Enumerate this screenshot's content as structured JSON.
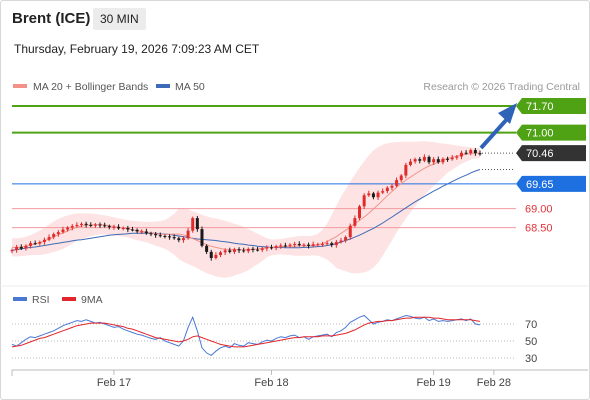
{
  "header": {
    "instrument": "Brent (ICE)",
    "timeframe": "30 MIN",
    "datetime": "Thursday, February 19, 2026 7:09:23 AM CET"
  },
  "legend": {
    "items": [
      {
        "label": "MA 20 + Bollinger Bands",
        "color": "#f4928a"
      },
      {
        "label": "MA 50",
        "color": "#3d6bb5"
      }
    ],
    "credit": "Research © 2026 Trading Central"
  },
  "chart_data": [
    {
      "type": "candlestick",
      "ylim": [
        67.55,
        71.9
      ],
      "levels": [
        {
          "value": 71.7,
          "label": "71.70",
          "color": "#4ea213",
          "kind": "tag"
        },
        {
          "value": 71.0,
          "label": "71.00",
          "color": "#4ea213",
          "kind": "tag"
        },
        {
          "value": 70.46,
          "label": "70.46",
          "color": "#333333",
          "kind": "price"
        },
        {
          "value": 69.65,
          "label": "69.65",
          "color": "#1e6fe0",
          "kind": "tag"
        },
        {
          "value": 69.0,
          "label": "69.00",
          "color": "#e0333a",
          "kind": "text"
        },
        {
          "value": 68.5,
          "label": "68.50",
          "color": "#e0333a",
          "kind": "text"
        }
      ],
      "close": [
        67.91,
        67.99,
        67.95,
        68.02,
        68.09,
        68.08,
        68.12,
        68.18,
        68.25,
        68.33,
        68.38,
        68.45,
        68.5,
        68.54,
        68.57,
        68.6,
        68.57,
        68.55,
        68.58,
        68.56,
        68.54,
        68.51,
        68.52,
        68.48,
        68.49,
        68.45,
        68.44,
        68.4,
        68.4,
        68.35,
        68.33,
        68.3,
        68.28,
        68.27,
        68.25,
        68.22,
        68.17,
        68.22,
        68.42,
        68.75,
        68.46,
        68.02,
        67.86,
        67.7,
        67.78,
        67.85,
        67.9,
        67.86,
        67.93,
        67.9,
        67.88,
        67.94,
        67.92,
        67.91,
        67.95,
        67.98,
        67.96,
        68.01,
        68.03,
        68.02,
        68.05,
        68.07,
        68.04,
        68.05,
        68.02,
        68.06,
        68.06,
        68.07,
        68.09,
        68.04,
        68.12,
        68.16,
        68.25,
        68.55,
        68.75,
        69.06,
        69.35,
        69.4,
        69.3,
        69.42,
        69.46,
        69.55,
        69.6,
        69.75,
        69.87,
        70.15,
        70.24,
        70.3,
        70.26,
        70.36,
        70.22,
        70.3,
        70.22,
        70.31,
        70.3,
        70.34,
        70.37,
        70.47,
        70.46,
        70.54,
        70.46,
        70.43
      ],
      "ma20": [
        67.98,
        67.98,
        67.99,
        68.01,
        68.04,
        68.07,
        68.1,
        68.15,
        68.2,
        68.26,
        68.31,
        68.36,
        68.41,
        68.46,
        68.51,
        68.54,
        68.56,
        68.57,
        68.58,
        68.58,
        68.57,
        68.55,
        68.53,
        68.51,
        68.49,
        68.47,
        68.44,
        68.42,
        68.4,
        68.38,
        68.36,
        68.34,
        68.33,
        68.32,
        68.32,
        68.33,
        68.33,
        68.31,
        68.26,
        68.21,
        68.16,
        68.1,
        68.05,
        68.01,
        67.98,
        67.95,
        67.93,
        67.92,
        67.92,
        67.92,
        67.92,
        67.92,
        67.93,
        67.94,
        67.95,
        67.97,
        67.98,
        67.99,
        68.0,
        68.0,
        68.01,
        68.01,
        68.02,
        68.02,
        68.02,
        68.03,
        68.05,
        68.08,
        68.13,
        68.2,
        68.26,
        68.35,
        68.43,
        68.51,
        68.6,
        68.69,
        68.78,
        68.88,
        68.99,
        69.1,
        69.22,
        69.34,
        69.45,
        69.56,
        69.66,
        69.75,
        69.83,
        69.91,
        69.99,
        70.06,
        70.12,
        70.17,
        70.22,
        70.27,
        70.32,
        70.35,
        70.38,
        70.41,
        70.43,
        70.45,
        70.46,
        70.46
      ],
      "ma50": [
        67.9,
        67.92,
        67.94,
        67.96,
        67.98,
        67.99,
        68.01,
        68.03,
        68.05,
        68.07,
        68.09,
        68.11,
        68.13,
        68.15,
        68.17,
        68.18,
        68.2,
        68.22,
        68.24,
        68.26,
        68.28,
        68.3,
        68.31,
        68.32,
        68.33,
        68.34,
        68.35,
        68.35,
        68.35,
        68.35,
        68.35,
        68.35,
        68.34,
        68.33,
        68.32,
        68.3,
        68.28,
        68.26,
        68.24,
        68.22,
        68.2,
        68.19,
        68.18,
        68.17,
        68.16,
        68.14,
        68.13,
        68.11,
        68.09,
        68.07,
        68.06,
        68.04,
        68.03,
        68.01,
        68.0,
        67.99,
        67.98,
        67.98,
        67.98,
        67.97,
        67.97,
        67.97,
        67.97,
        67.98,
        67.98,
        67.99,
        68.0,
        68.01,
        68.03,
        68.05,
        68.08,
        68.12,
        68.16,
        68.2,
        68.25,
        68.3,
        68.36,
        68.42,
        68.48,
        68.55,
        68.62,
        68.7,
        68.78,
        68.86,
        68.94,
        69.02,
        69.1,
        69.18,
        69.25,
        69.32,
        69.39,
        69.46,
        69.52,
        69.59,
        69.65,
        69.71,
        69.77,
        69.83,
        69.88,
        69.94,
        69.99,
        70.03
      ],
      "bb_upper": [
        68.22,
        68.22,
        68.23,
        68.26,
        68.3,
        68.36,
        68.42,
        68.5,
        68.58,
        68.66,
        68.73,
        68.78,
        68.82,
        68.85,
        68.87,
        68.88,
        68.88,
        68.87,
        68.86,
        68.84,
        68.82,
        68.8,
        68.77,
        68.74,
        68.72,
        68.69,
        68.68,
        68.67,
        68.66,
        68.65,
        68.65,
        68.66,
        68.67,
        68.7,
        68.77,
        68.87,
        68.99,
        69.02,
        68.98,
        68.93,
        68.89,
        68.84,
        68.8,
        68.76,
        68.74,
        68.71,
        68.68,
        68.64,
        68.6,
        68.56,
        68.52,
        68.46,
        68.4,
        68.34,
        68.28,
        68.22,
        68.19,
        68.19,
        68.2,
        68.22,
        68.24,
        68.26,
        68.28,
        68.28,
        68.28,
        68.29,
        68.34,
        68.44,
        68.6,
        68.84,
        69.08,
        69.31,
        69.51,
        69.71,
        69.9,
        70.08,
        70.24,
        70.4,
        70.53,
        70.62,
        70.68,
        70.72,
        70.74,
        70.75,
        70.76,
        70.76,
        70.76,
        70.76,
        70.77,
        70.77,
        70.76,
        70.75,
        70.73,
        70.71,
        70.7,
        70.68,
        70.66,
        70.64,
        70.63,
        70.61,
        70.6,
        70.59
      ],
      "bb_lower": [
        67.74,
        67.74,
        67.75,
        67.76,
        67.78,
        67.78,
        67.78,
        67.8,
        67.82,
        67.86,
        67.89,
        67.94,
        68.0,
        68.07,
        68.15,
        68.2,
        68.24,
        68.27,
        68.3,
        68.32,
        68.32,
        68.3,
        68.29,
        68.28,
        68.26,
        68.25,
        68.2,
        68.17,
        68.14,
        68.11,
        68.07,
        68.02,
        67.99,
        67.94,
        67.87,
        67.79,
        67.67,
        67.6,
        67.54,
        67.49,
        67.43,
        67.36,
        67.3,
        67.26,
        67.22,
        67.19,
        67.18,
        67.2,
        67.24,
        67.28,
        67.32,
        67.38,
        67.46,
        67.54,
        67.62,
        67.72,
        67.77,
        67.79,
        67.8,
        67.78,
        67.78,
        67.76,
        67.76,
        67.76,
        67.76,
        67.77,
        67.76,
        67.72,
        67.66,
        67.56,
        67.44,
        67.39,
        67.35,
        67.31,
        67.3,
        67.3,
        67.32,
        67.36,
        67.45,
        67.58,
        67.76,
        67.96,
        68.16,
        68.37,
        68.56,
        68.74,
        68.9,
        69.06,
        69.21,
        69.35,
        69.48,
        69.59,
        69.71,
        69.83,
        69.94,
        70.02,
        70.1,
        70.18,
        70.23,
        70.29,
        70.32,
        70.33
      ]
    },
    {
      "type": "line",
      "ylabels": [
        "70",
        "50",
        "30"
      ],
      "ylevels": [
        70,
        50,
        30
      ],
      "ylim": [
        18,
        84
      ],
      "series": [
        {
          "name": "RSI",
          "color": "#4a78d4",
          "values": [
            46,
            44,
            48,
            52,
            55,
            54,
            56,
            58,
            60,
            62,
            65,
            68,
            70,
            72,
            74,
            73,
            75,
            73,
            71,
            72,
            70,
            68,
            66,
            67,
            64,
            62,
            60,
            58,
            57,
            55,
            53,
            52,
            54,
            50,
            48,
            46,
            44,
            50,
            66,
            78,
            62,
            42,
            36,
            33,
            38,
            42,
            44,
            42,
            47,
            45,
            44,
            48,
            47,
            46,
            49,
            51,
            50,
            53,
            55,
            54,
            56,
            57,
            54,
            55,
            52,
            55,
            56,
            57,
            58,
            55,
            60,
            62,
            66,
            72,
            75,
            78,
            80,
            75,
            70,
            72,
            73,
            75,
            74,
            76,
            78,
            80,
            79,
            77,
            76,
            78,
            74,
            76,
            73,
            74,
            73,
            74,
            75,
            76,
            74,
            76,
            70,
            69
          ]
        },
        {
          "name": "9MA",
          "color": "#e2262b",
          "values": [
            43,
            44,
            45,
            47,
            49,
            51,
            53,
            54,
            56,
            58,
            60,
            62,
            64,
            66,
            68,
            69,
            70,
            71,
            71,
            71,
            71,
            70,
            69,
            68,
            67,
            65,
            64,
            62,
            60,
            58,
            56,
            54,
            53,
            52,
            51,
            50,
            49,
            50,
            52,
            55,
            56,
            54,
            52,
            50,
            48,
            46,
            45,
            44,
            43,
            43,
            43,
            44,
            45,
            46,
            47,
            48,
            49,
            50,
            51,
            52,
            53,
            54,
            54,
            55,
            55,
            55,
            55,
            56,
            56,
            56,
            57,
            58,
            59,
            61,
            63,
            66,
            69,
            71,
            72,
            73,
            73,
            74,
            74,
            75,
            76,
            77,
            77,
            78,
            78,
            78,
            78,
            77,
            77,
            76,
            75,
            75,
            75,
            75,
            75,
            75,
            74,
            73
          ]
        }
      ]
    }
  ],
  "xaxis": {
    "ticks": [
      {
        "label": "Feb 17",
        "index": 22
      },
      {
        "label": "Feb 18",
        "index": 56
      },
      {
        "label": "Feb 19",
        "index": 91
      },
      {
        "label": "Feb 28",
        "index": 104
      }
    ]
  },
  "rsi_legend": [
    {
      "label": "RSI",
      "color": "#4a78d4"
    },
    {
      "label": "9MA",
      "color": "#e2262b"
    }
  ]
}
